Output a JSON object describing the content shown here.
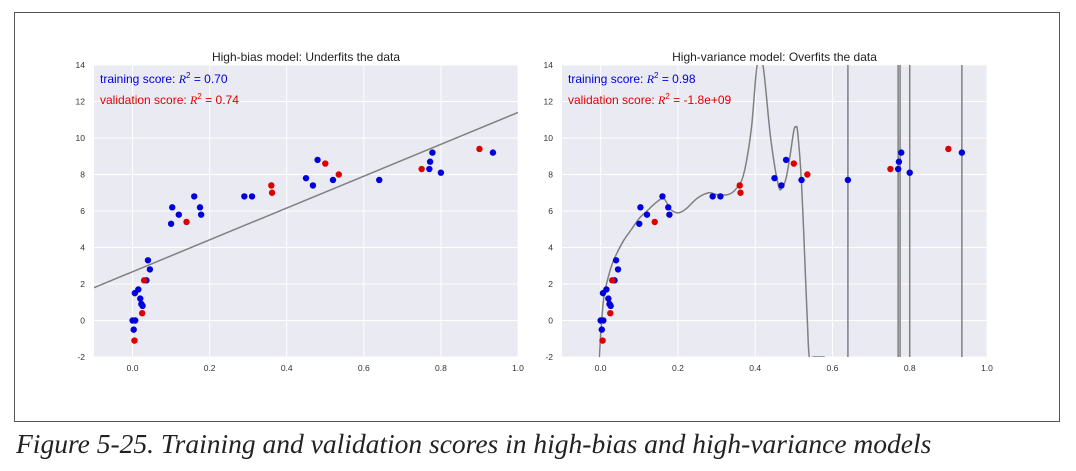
{
  "caption": "Figure 5-25. Training and validation scores in high-bias and high-variance models",
  "colors": {
    "plot_bg": "#eaeaf2",
    "grid": "#ffffff",
    "training": "#0000dd",
    "validation": "#dd0000",
    "model_line": "#808080"
  },
  "chart_data": [
    {
      "type": "scatter",
      "title": "High-bias model: Underfits the data",
      "xlim": [
        -0.1,
        1.0
      ],
      "ylim": [
        -2,
        14
      ],
      "xticks": [
        "0.0",
        "0.2",
        "0.4",
        "0.6",
        "0.8",
        "1.0"
      ],
      "yticks": [
        "-2",
        "0",
        "2",
        "4",
        "6",
        "8",
        "10",
        "12",
        "14"
      ],
      "grid": true,
      "annotations": [
        {
          "prefix": "training score: ",
          "r2": "R",
          "sup": "2",
          "value": " = 0.70",
          "color": "training"
        },
        {
          "prefix": "validation score: ",
          "r2": "R",
          "sup": "2",
          "value": " = 0.74",
          "color": "validation"
        }
      ],
      "fit_line": {
        "x": [
          -0.1,
          1.0
        ],
        "y": [
          1.8,
          11.4
        ]
      },
      "series": [
        {
          "name": "",
          "color": "training",
          "x": [
            0.0,
            0.003,
            0.006,
            0.007,
            0.015,
            0.02,
            0.023,
            0.026,
            0.036,
            0.04,
            0.045,
            0.1,
            0.103,
            0.12,
            0.16,
            0.175,
            0.178,
            0.29,
            0.31,
            0.45,
            0.468,
            0.48,
            0.52,
            0.64,
            0.77,
            0.772,
            0.778,
            0.8,
            0.935
          ],
          "y": [
            0.0,
            -0.5,
            1.5,
            0.0,
            1.7,
            1.2,
            0.9,
            0.8,
            2.2,
            3.3,
            2.8,
            5.3,
            6.2,
            5.8,
            6.8,
            6.2,
            5.8,
            6.8,
            6.8,
            7.8,
            7.4,
            8.8,
            7.7,
            7.7,
            8.3,
            8.7,
            9.2,
            8.1,
            9.2
          ]
        },
        {
          "name": "",
          "color": "validation",
          "x": [
            0.005,
            0.025,
            0.03,
            0.14,
            0.36,
            0.362,
            0.5,
            0.535,
            0.75,
            0.9
          ],
          "y": [
            -1.1,
            0.4,
            2.2,
            5.4,
            7.4,
            7.0,
            8.6,
            8.0,
            8.3,
            9.4
          ]
        }
      ]
    },
    {
      "type": "scatter",
      "title": "High-variance model: Overfits the data",
      "xlim": [
        -0.1,
        1.0
      ],
      "ylim": [
        -2,
        14
      ],
      "xticks": [
        "0.0",
        "0.2",
        "0.4",
        "0.6",
        "0.8",
        "1.0"
      ],
      "yticks": [
        "-2",
        "0",
        "2",
        "4",
        "6",
        "8",
        "10",
        "12",
        "14"
      ],
      "grid": true,
      "annotations": [
        {
          "prefix": "training score: ",
          "r2": "R",
          "sup": "2",
          "value": " = 0.98",
          "color": "training"
        },
        {
          "prefix": "validation score: ",
          "r2": "R",
          "sup": "2",
          "value": " = -1.8e+09",
          "color": "validation"
        }
      ],
      "fit_curve": {
        "x": [
          -0.003,
          0.0,
          0.005,
          0.01,
          0.02,
          0.03,
          0.04,
          0.06,
          0.08,
          0.1,
          0.12,
          0.14,
          0.16,
          0.17,
          0.18,
          0.2,
          0.22,
          0.25,
          0.28,
          0.3,
          0.33,
          0.35,
          0.37,
          0.39,
          0.405,
          0.42,
          0.44,
          0.46,
          0.47,
          0.48,
          0.49,
          0.5,
          0.505,
          0.51,
          0.52,
          0.53,
          0.535,
          0.54,
          0.55,
          0.56,
          0.57,
          0.58
        ],
        "y": [
          -2.0,
          -0.8,
          0.6,
          1.5,
          2.4,
          3.1,
          3.6,
          4.4,
          5.0,
          5.6,
          6.0,
          6.4,
          6.7,
          6.5,
          6.1,
          5.9,
          6.1,
          6.7,
          7.0,
          6.9,
          6.9,
          7.2,
          8.0,
          10.5,
          14.0,
          14.0,
          10.0,
          7.4,
          7.3,
          7.8,
          9.0,
          10.4,
          10.6,
          10.3,
          7.5,
          2.5,
          0.0,
          -2.0,
          -2.0,
          -2.0,
          -2.0,
          -2.0
        ]
      },
      "fit_vertical_lines": [
        0.64,
        0.77,
        0.775,
        0.8,
        0.935
      ],
      "series": [
        {
          "name": "",
          "color": "training",
          "x": [
            0.0,
            0.003,
            0.006,
            0.007,
            0.015,
            0.02,
            0.023,
            0.026,
            0.036,
            0.04,
            0.045,
            0.1,
            0.103,
            0.12,
            0.16,
            0.175,
            0.178,
            0.29,
            0.31,
            0.45,
            0.468,
            0.48,
            0.52,
            0.64,
            0.77,
            0.772,
            0.778,
            0.8,
            0.935
          ],
          "y": [
            0.0,
            -0.5,
            1.5,
            0.0,
            1.7,
            1.2,
            0.9,
            0.8,
            2.2,
            3.3,
            2.8,
            5.3,
            6.2,
            5.8,
            6.8,
            6.2,
            5.8,
            6.8,
            6.8,
            7.8,
            7.4,
            8.8,
            7.7,
            7.7,
            8.3,
            8.7,
            9.2,
            8.1,
            9.2
          ]
        },
        {
          "name": "",
          "color": "validation",
          "x": [
            0.005,
            0.025,
            0.03,
            0.14,
            0.36,
            0.362,
            0.5,
            0.535,
            0.75,
            0.9
          ],
          "y": [
            -1.1,
            0.4,
            2.2,
            5.4,
            7.4,
            7.0,
            8.6,
            8.0,
            8.3,
            9.4
          ]
        }
      ]
    }
  ]
}
